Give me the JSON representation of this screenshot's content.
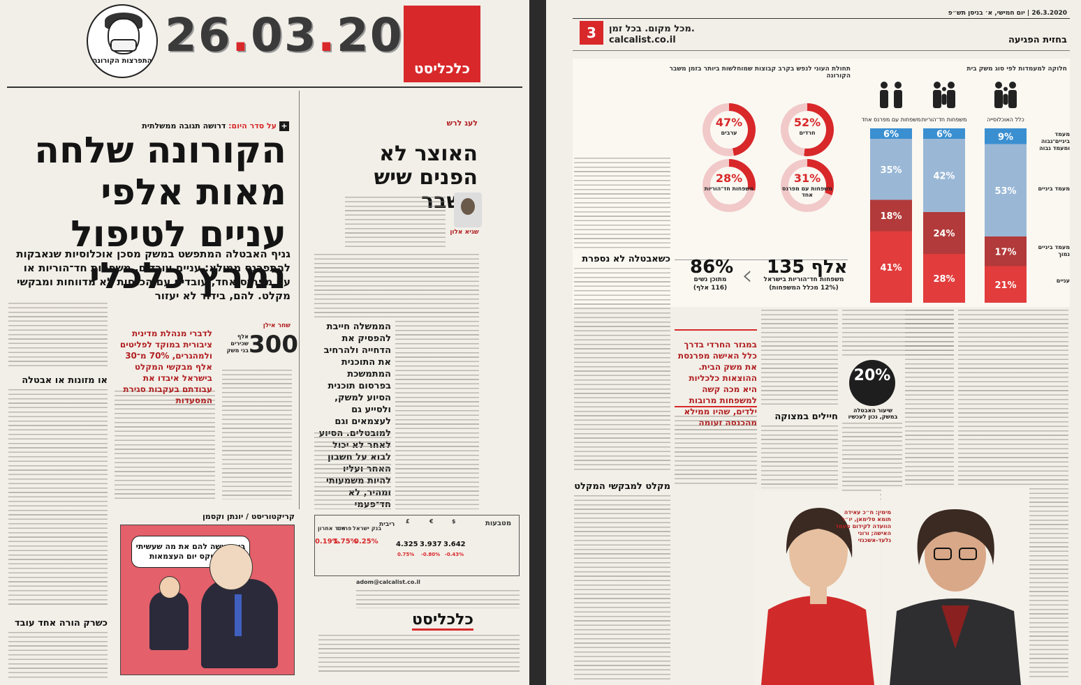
{
  "left_page": {
    "date": {
      "d1": "26",
      "dot1": ".",
      "d2": "03",
      "dot2": ".",
      "d3": "20"
    },
    "mascot_label": "התפרצות הקורונה",
    "logo": "כלכליסט",
    "topic": {
      "prefix": "על סדר היום:",
      "text": " דרושה תגובה ממשלתית"
    },
    "headline": "הקורונה שלחה מאות אלפי עניים לטיפול נמרץ כלכלי",
    "subhead": "גניף האבטלה המתפשט במשק מסכן אוכלוסיות שנאבקות להתפרנס ממילא: עניים עובדים, משפחות חד־הוריות או עם מפרנס אחד, עובדים עם הכנסות לא מדווחות ומבקשי מקלט. להם, בידוד לא יעזור",
    "column_label": "לעג לרש",
    "column_headline": "האוצר לא הפנים שיש משבר",
    "column_author": "שגיא אלון",
    "column_pull": "הממשלה חייבת להפסיק את הדחייה ולהרחיב את התוכנית המתמשכת בפרסום תוכנית הסיוע למשק, ולסייע גם לעצמאים וגם למובטלים. הסיוע לאחר לא יכול לבוא על חשבון האחר ועליו להיות משמעותי ומהיר, לא חד־פעמי",
    "stat_number": "300",
    "stat_label": "אלף שכירים בני משק",
    "side_author": "שחר אילן",
    "quote": "לדברי מנהלת מדינית ציבורית במוקד לפליטים ולמהגרים, 70% מ־30 אלף מבקשי המקלט בישראל איבדו את עבודתם בעקבות סגירת המסעדות",
    "sub_heads": [
      "או מזונות או אבטלה",
      "כשרק הורה אחד עובד"
    ],
    "cartoon_header": "קריקטוריסט / יונתן וקסמן",
    "cartoon_bubble": "בוא נעשה להם את מה שעשיתי לך בטקס יום העצמאות",
    "market": {
      "label": "מטבעות",
      "currencies": [
        {
          "sym": "$",
          "value": "3.642",
          "change": "-0.43%"
        },
        {
          "sym": "€",
          "value": "3.937",
          "change": "-0.80%"
        },
        {
          "sym": "£",
          "value": "4.325",
          "change": "0.75%"
        }
      ],
      "rates_label": "ריבית",
      "rates": [
        {
          "name": "בנק ישראל",
          "value": "0.25%"
        },
        {
          "name": "פריים",
          "value": "1.75%"
        },
        {
          "name": "מדד אחרון",
          "value": "0.19%"
        }
      ]
    },
    "footer_logo": "כלכליסט",
    "email": "adom@calcalist.co.il"
  },
  "right_page": {
    "page_number": "3",
    "site_tagline": "מכל מקום. בכל זמן.",
    "site": "calcalist.co.il",
    "top_line": "26.3.2020  |  יום חמישי, א׳ בניסן תש״פ",
    "section": "בחזית הפגיעה",
    "chart_title_right": "חלוקה למעמדות לפי סוג משק בית",
    "chart_title_left": "תחולת העוני לנפש בקרב קבוצות שמוחלשות ביותר בזמן משבר הקורונה",
    "donut_labels": [
      "ערבים",
      "חרדים",
      "משפחות חד־הוריות",
      "משפחות עם מפרנס אחד"
    ],
    "stat1": {
      "value": "135 אלף",
      "label": "משפחות חד־הוריות בישראל",
      "note": "(12% מכלל המשפחות)"
    },
    "stat2": {
      "value": "86%",
      "label": "מתוכן נשים",
      "note": "(116 אלף)"
    },
    "callout": "במגזר החרדי בדרך כלל האישה מפרנסת את משק הבית. ההוצאות כלכליות היא מכה קשה למשפחות מרובות ילדים, שהיו ממילא מהכנסה זעומה",
    "badge": {
      "value": "20%",
      "label": "שיעור האבטלה במשק, נכון לעכשיו"
    },
    "sub_heads": [
      "כשאבטלה לא נספרת",
      "חיילים במצוקה",
      "מקלט למבקשי המקלט"
    ],
    "photo_caption": "מימין: ח״כ עאידה תומא סלימאן, יו״ר הוועדה לקידום מעמד האישה; ורוני גלעד-אשכנזי"
  },
  "chart_data": [
    {
      "type": "bar",
      "stacked": true,
      "title": "חלוקה למעמדות לפי סוג משק בית",
      "categories": [
        "כלל האוכלוסייה",
        "משפחות חד־הוריות",
        "משפחות עם מפרנס אחד"
      ],
      "series": [
        {
          "name": "מעמד ביניים־גבוה ומעמד גבוה",
          "values": [
            9,
            6,
            6
          ],
          "color": "#3a8fd0"
        },
        {
          "name": "מעמד ביניים",
          "values": [
            53,
            42,
            35
          ],
          "color": "#9ab8d6"
        },
        {
          "name": "מעמד ביניים נמוך",
          "values": [
            17,
            24,
            18
          ],
          "color": "#b23a3a"
        },
        {
          "name": "עניים",
          "values": [
            21,
            28,
            41
          ],
          "color": "#e23c3c"
        }
      ]
    },
    {
      "type": "pie",
      "title": "תחולת העוני לנפש בקרב קבוצות שמוחלשות ביותר בזמן משבר הקורונה",
      "categories": [
        "חרדים",
        "ערבים",
        "משפחות עם מפרנס אחד",
        "משפחות חד־הוריות"
      ],
      "values": [
        52,
        47,
        31,
        28
      ]
    }
  ]
}
